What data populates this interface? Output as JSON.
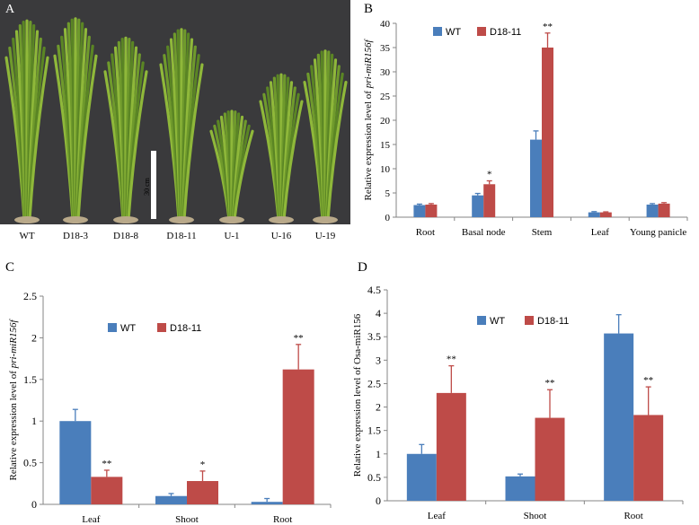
{
  "panels": {
    "A": {
      "letter": "A",
      "scale_label": "30 cm",
      "plant_labels": [
        "WT",
        "D18-3",
        "D18-8",
        "D18-11",
        "U-1",
        "U-16",
        "U-19"
      ],
      "plant_heights": [
        0.92,
        0.93,
        0.84,
        0.88,
        0.5,
        0.67,
        0.78
      ]
    },
    "B": {
      "letter": "B"
    },
    "C": {
      "letter": "C"
    },
    "D": {
      "letter": "D"
    }
  },
  "colors": {
    "wt": "#4a7ebb",
    "d18": "#be4b48",
    "photo_bg": "#3a3a3c",
    "plant": "#6f9a2c"
  },
  "chart_data": [
    {
      "id": "B",
      "type": "bar",
      "ylabel_prefix": "Relative expression level of ",
      "ylabel_gene": "pri-miR156f",
      "categories": [
        "Root",
        "Basal node",
        "Stem",
        "Leaf",
        "Young panicle"
      ],
      "series": [
        {
          "name": "WT",
          "values": [
            2.5,
            4.5,
            16,
            1.0,
            2.6
          ],
          "errors": [
            0.2,
            0.4,
            1.8,
            0.15,
            0.2
          ],
          "sig": [
            "",
            "",
            "",
            "",
            ""
          ]
        },
        {
          "name": "D18-11",
          "values": [
            2.6,
            6.8,
            35,
            1.0,
            2.8
          ],
          "errors": [
            0.2,
            0.7,
            3.0,
            0.1,
            0.2
          ],
          "sig": [
            "",
            "*",
            "**",
            "",
            ""
          ]
        }
      ],
      "ylim": [
        0,
        40
      ],
      "yticks": [
        0,
        5,
        10,
        15,
        20,
        25,
        30,
        35,
        40
      ],
      "legend": "top-left",
      "grid": false
    },
    {
      "id": "C",
      "type": "bar",
      "ylabel_prefix": "Relative expression level of ",
      "ylabel_gene": "pri-miR156f",
      "categories": [
        "Leaf",
        "Shoot",
        "Root"
      ],
      "series": [
        {
          "name": "WT",
          "values": [
            1.0,
            0.1,
            0.03
          ],
          "errors": [
            0.14,
            0.03,
            0.04
          ],
          "sig": [
            "",
            "",
            ""
          ]
        },
        {
          "name": "D18-11",
          "values": [
            0.33,
            0.28,
            1.62
          ],
          "errors": [
            0.08,
            0.12,
            0.3
          ],
          "sig": [
            "**",
            "*",
            "**"
          ]
        }
      ],
      "ylim": [
        0,
        2.5
      ],
      "yticks": [
        0,
        0.5,
        1,
        1.5,
        2,
        2.5
      ],
      "legend": "top-left",
      "grid": false
    },
    {
      "id": "D",
      "type": "bar",
      "ylabel_prefix": "Relative expression level of Osa-miR156",
      "ylabel_gene": "",
      "categories": [
        "Leaf",
        "Shoot",
        "Root"
      ],
      "series": [
        {
          "name": "WT",
          "values": [
            1.0,
            0.52,
            3.57
          ],
          "errors": [
            0.2,
            0.05,
            0.4
          ],
          "sig": [
            "",
            "",
            ""
          ]
        },
        {
          "name": "D18-11",
          "values": [
            2.3,
            1.77,
            1.83
          ],
          "errors": [
            0.58,
            0.6,
            0.6
          ],
          "sig": [
            "**",
            "**",
            "**"
          ]
        }
      ],
      "ylim": [
        0,
        4.5
      ],
      "yticks": [
        0,
        0.5,
        1,
        1.5,
        2,
        2.5,
        3,
        3.5,
        4,
        4.5
      ],
      "legend": "top-center",
      "grid": false
    }
  ]
}
